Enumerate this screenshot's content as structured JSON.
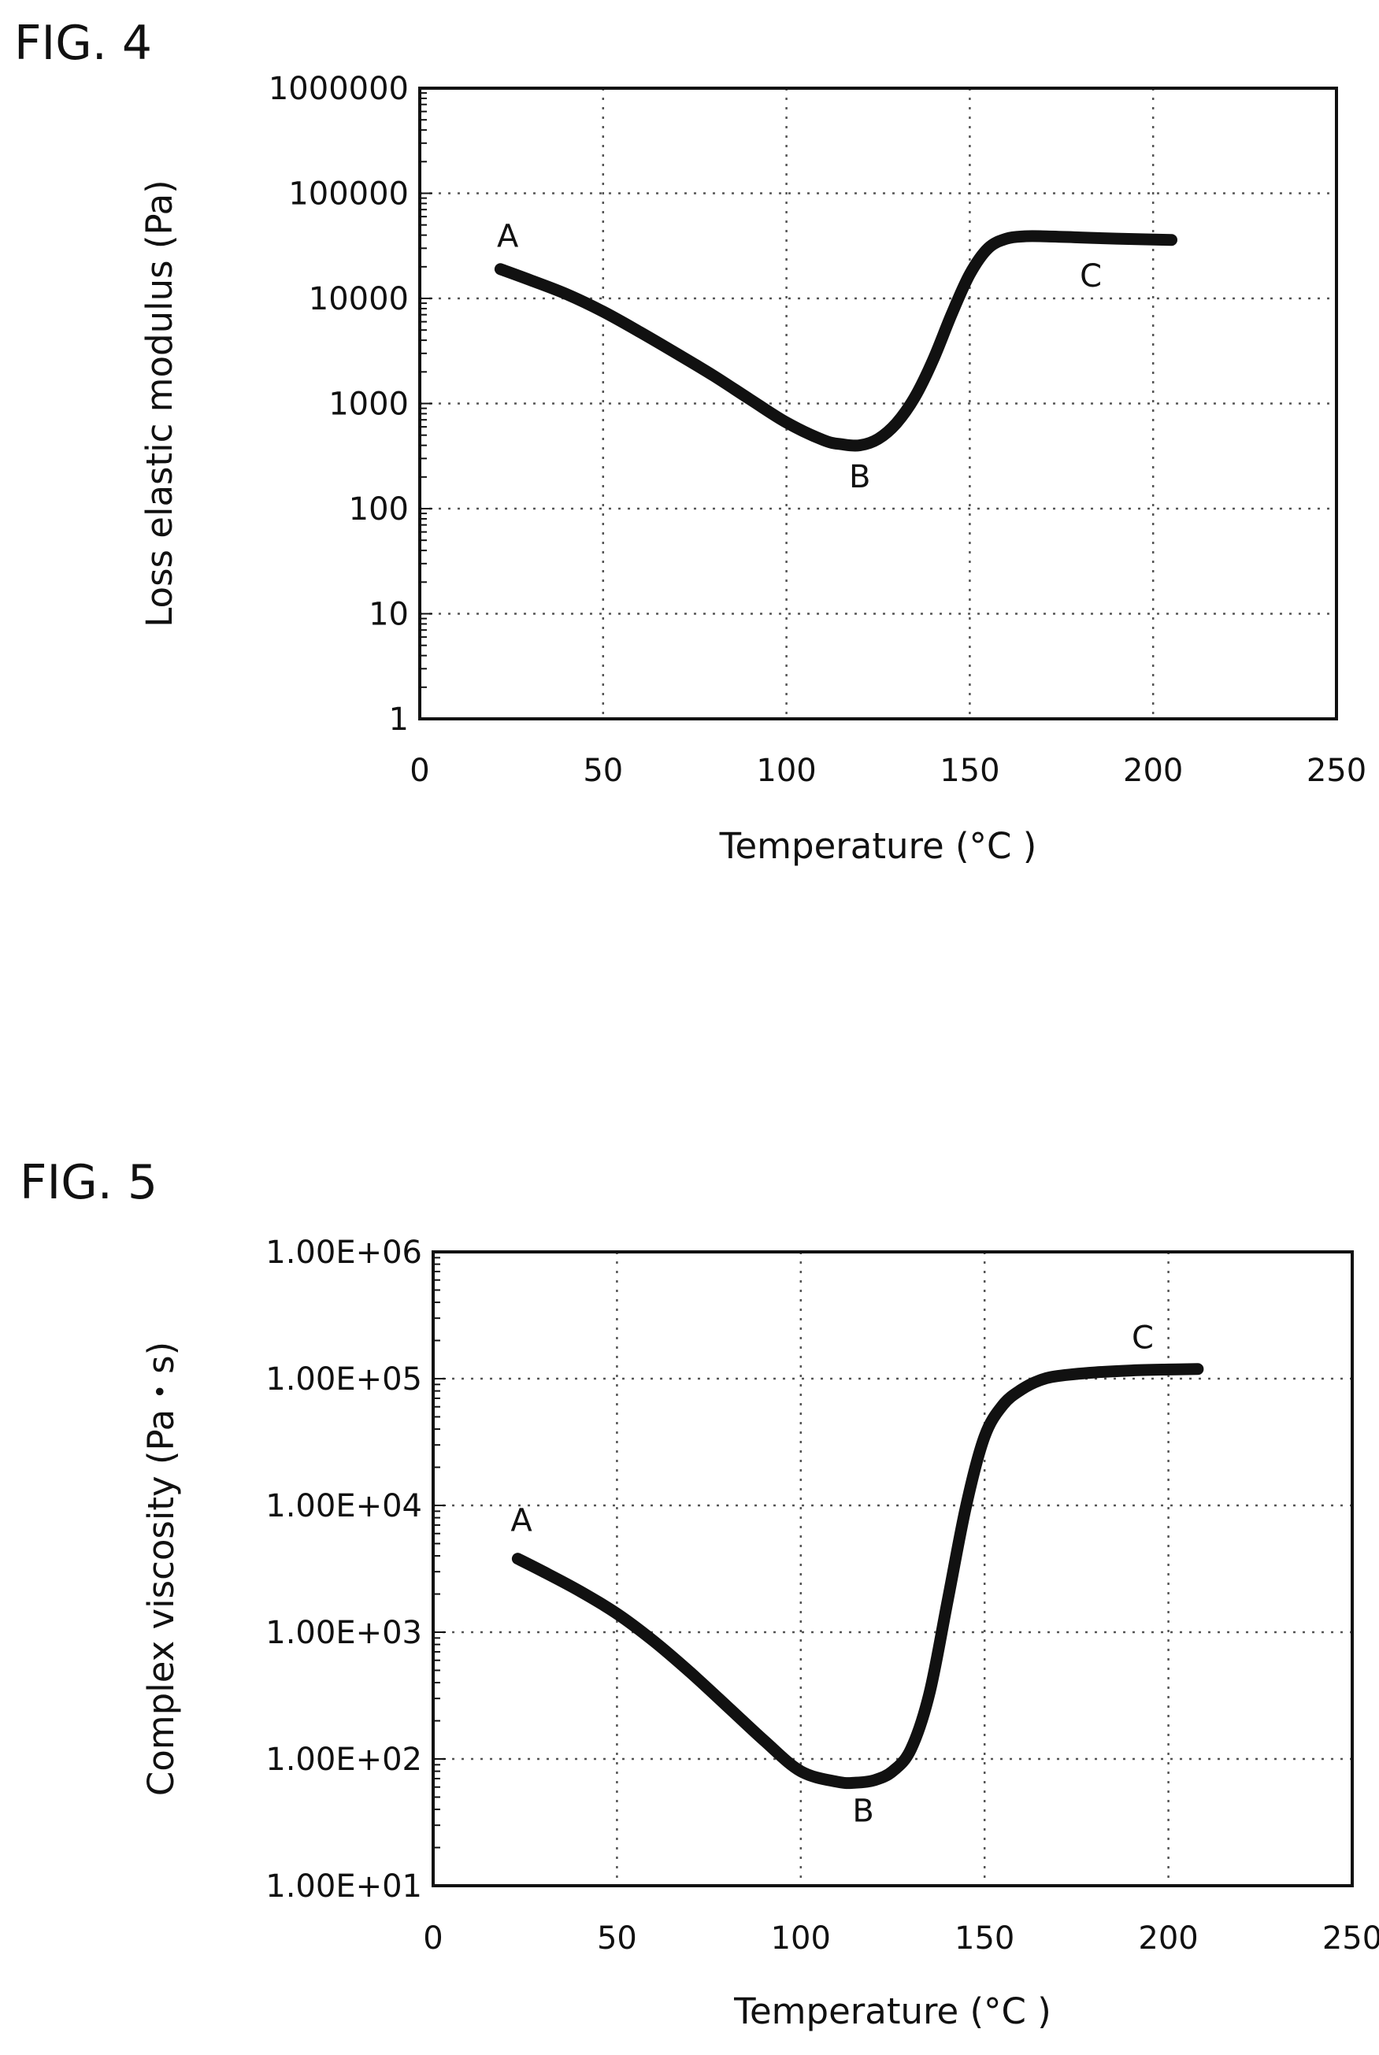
{
  "chart_data": [
    {
      "type": "line",
      "figure_label": "FIG. 4",
      "xlabel": "Temperature (°C )",
      "ylabel": "Loss elastic modulus (Pa)",
      "yscale": "log",
      "xlim": [
        0,
        250
      ],
      "ylim": [
        1,
        1000000
      ],
      "x_ticks": [
        0,
        50,
        100,
        150,
        200,
        250
      ],
      "x_tick_labels": [
        "0",
        "50",
        "100",
        "150",
        "200",
        "250"
      ],
      "y_ticks": [
        1,
        10,
        100,
        1000,
        10000,
        100000,
        1000000
      ],
      "y_tick_labels": [
        "1",
        "10",
        "100",
        "1000",
        "10000",
        "100000",
        "1000000"
      ],
      "grid": true,
      "series": [
        {
          "x": [
            22,
            30,
            40,
            50,
            60,
            70,
            80,
            90,
            100,
            110,
            115,
            120,
            125,
            130,
            135,
            140,
            145,
            150,
            155,
            160,
            165,
            170,
            180,
            190,
            205
          ],
          "y": [
            19000,
            15000,
            11000,
            7500,
            4800,
            3000,
            1850,
            1100,
            660,
            450,
            410,
            400,
            460,
            650,
            1150,
            2600,
            7000,
            17000,
            30000,
            37000,
            39000,
            39000,
            38000,
            37000,
            36000
          ]
        }
      ],
      "annotations": [
        {
          "text": "A",
          "x": 24,
          "y": 31000
        },
        {
          "text": "B",
          "x": 120,
          "y": 160
        },
        {
          "text": "C",
          "x": 183,
          "y": 13000
        }
      ]
    },
    {
      "type": "line",
      "figure_label": "FIG. 5",
      "xlabel": "Temperature (°C )",
      "ylabel": "Complex viscosity (Pa・s)",
      "yscale": "log",
      "xlim": [
        0,
        250
      ],
      "ylim": [
        10,
        1000000
      ],
      "x_ticks": [
        0,
        50,
        100,
        150,
        200,
        250
      ],
      "x_tick_labels": [
        "0",
        "50",
        "100",
        "150",
        "200",
        "250"
      ],
      "y_ticks": [
        10,
        100,
        1000,
        10000,
        100000,
        1000000
      ],
      "y_tick_labels": [
        "1.00E+01",
        "1.00E+02",
        "1.00E+03",
        "1.00E+04",
        "1.00E+05",
        "1.00E+06"
      ],
      "grid": true,
      "series": [
        {
          "x": [
            23,
            30,
            40,
            50,
            60,
            70,
            80,
            90,
            100,
            110,
            115,
            120,
            125,
            130,
            135,
            140,
            145,
            150,
            155,
            160,
            165,
            170,
            180,
            190,
            200,
            208
          ],
          "y": [
            3800,
            3000,
            2100,
            1400,
            850,
            480,
            260,
            140,
            80,
            66,
            65,
            68,
            80,
            120,
            330,
            1800,
            10000,
            35000,
            62000,
            82000,
            97000,
            105000,
            112000,
            116000,
            118000,
            119000
          ]
        }
      ],
      "annotations": [
        {
          "text": "A",
          "x": 24,
          "y": 6300
        },
        {
          "text": "B",
          "x": 117,
          "y": 32
        },
        {
          "text": "C",
          "x": 193,
          "y": 173000
        }
      ]
    }
  ]
}
